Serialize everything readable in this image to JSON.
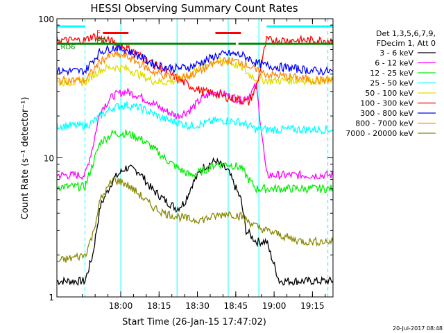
{
  "chart_data": {
    "type": "line",
    "title": "HESSI Observing Summary Count Rates",
    "xlabel": "Start Time (26-Jan-15 17:47:02)",
    "ylabel": "Count Rate (s⁻¹ detector⁻¹)",
    "yscale": "log",
    "ylim": [
      1,
      100
    ],
    "xlim_minutes": [
      -12.0,
      96.0
    ],
    "x_ticks": [
      "18:00",
      "18:15",
      "18:30",
      "18:45",
      "19:00",
      "19:15"
    ],
    "y_ticks": [
      "1",
      "10",
      "100"
    ],
    "footer_date": "20-Jul-2017 08:48",
    "legend": {
      "title": [
        "Det 1,3,5,6,7,9,",
        "FDecim 1, Att 0"
      ],
      "position": "right"
    },
    "series": [
      {
        "name": "3 - 6 keV",
        "color": "#000000",
        "x": [
          -12,
          -1,
          2,
          5,
          10,
          15,
          20,
          25,
          30,
          35,
          38,
          41,
          45,
          50,
          55,
          60,
          62,
          66,
          70,
          75,
          80,
          85,
          88,
          92,
          96
        ],
        "y": [
          1.3,
          1.3,
          2,
          4.5,
          7,
          8.5,
          8,
          6,
          5,
          4.3,
          4.8,
          6.5,
          8.5,
          9.5,
          8,
          5,
          3,
          2.5,
          2.5,
          1.3,
          1.3,
          1.3,
          1.3,
          1.3,
          1.3
        ]
      },
      {
        "name": "6 - 12 keV",
        "color": "#ff00ff",
        "x": [
          -12,
          -1,
          2,
          5,
          10,
          15,
          20,
          25,
          30,
          35,
          40,
          45,
          50,
          55,
          60,
          63,
          66,
          70,
          75,
          80,
          85,
          90,
          96
        ],
        "y": [
          7.5,
          7.5,
          12,
          22,
          28,
          30,
          28,
          25,
          22,
          20,
          22,
          27,
          30,
          28,
          26,
          28,
          33,
          7.5,
          7.5,
          7.5,
          7.5,
          7.5,
          7.5
        ]
      },
      {
        "name": "12 - 25 keV",
        "color": "#00ee00",
        "x": [
          -12,
          -1,
          2,
          5,
          10,
          15,
          20,
          25,
          30,
          35,
          40,
          45,
          50,
          55,
          60,
          63,
          66,
          70,
          75,
          80,
          85,
          90,
          96
        ],
        "y": [
          6.2,
          6.2,
          9,
          13,
          15,
          15,
          14,
          12,
          10,
          8.5,
          7.5,
          8,
          9,
          9,
          8.5,
          7,
          6,
          6,
          6,
          6,
          6,
          6,
          6
        ]
      },
      {
        "name": "25 - 50 keV",
        "color": "#00ffff",
        "x": [
          -12,
          -1,
          2,
          5,
          10,
          15,
          20,
          25,
          30,
          35,
          40,
          45,
          50,
          55,
          60,
          63,
          66,
          70,
          75,
          80,
          85,
          90,
          96
        ],
        "y": [
          17,
          17,
          18,
          20,
          23,
          24,
          23,
          21,
          19,
          18,
          17,
          17.5,
          18.5,
          18.5,
          18,
          17,
          16,
          16,
          16,
          16,
          16,
          16,
          16
        ]
      },
      {
        "name": "50 - 100 keV",
        "color": "#dddd00",
        "x": [
          -12,
          -1,
          2,
          5,
          10,
          15,
          20,
          25,
          30,
          35,
          40,
          45,
          50,
          55,
          60,
          63,
          66,
          70,
          75,
          80,
          85,
          90,
          96
        ],
        "y": [
          35,
          35,
          39,
          43,
          45,
          44,
          40,
          36,
          35,
          36,
          40,
          46,
          50,
          49,
          45,
          40,
          37,
          36,
          36,
          36,
          36,
          36,
          36
        ]
      },
      {
        "name": "100 - 300 keV",
        "color": "#ff0000",
        "x": [
          -12,
          -1,
          2,
          5,
          10,
          15,
          20,
          25,
          30,
          35,
          40,
          45,
          50,
          55,
          60,
          63,
          66,
          70,
          75,
          80,
          85,
          90,
          96
        ],
        "y": [
          70,
          70,
          75,
          72,
          68,
          62,
          55,
          48,
          43,
          37,
          33,
          30,
          29,
          27,
          26,
          25,
          32,
          70,
          70,
          70,
          70,
          70,
          70
        ]
      },
      {
        "name": "300 - 800 keV",
        "color": "#0000ff",
        "x": [
          -12,
          -1,
          2,
          5,
          10,
          15,
          20,
          25,
          30,
          35,
          40,
          45,
          50,
          55,
          60,
          63,
          66,
          70,
          75,
          80,
          85,
          90,
          96
        ],
        "y": [
          42,
          42,
          50,
          58,
          62,
          60,
          54,
          48,
          45,
          44,
          45,
          49,
          54,
          56,
          55,
          52,
          48,
          46,
          45,
          44,
          43,
          42,
          42
        ]
      },
      {
        "name": "800 - 7000 keV",
        "color": "#ff8800",
        "x": [
          -12,
          -1,
          2,
          5,
          10,
          15,
          20,
          25,
          30,
          35,
          40,
          45,
          50,
          55,
          60,
          63,
          66,
          70,
          75,
          80,
          85,
          90,
          96
        ],
        "y": [
          36,
          36,
          42,
          50,
          55,
          54,
          48,
          42,
          39,
          38,
          39,
          43,
          48,
          50,
          49,
          46,
          42,
          40,
          39,
          38,
          37,
          36,
          36
        ]
      },
      {
        "name": "7000 - 20000 keV",
        "color": "#888800",
        "x": [
          -12,
          -1,
          2,
          5,
          10,
          15,
          20,
          25,
          30,
          35,
          40,
          45,
          50,
          55,
          60,
          63,
          66,
          70,
          75,
          80,
          85,
          90,
          96
        ],
        "y": [
          1.8,
          2,
          2.8,
          5,
          7,
          6.5,
          5.5,
          4.5,
          4,
          3.8,
          3.6,
          3.6,
          3.8,
          4,
          3.8,
          3.5,
          3.2,
          3,
          2.8,
          2.6,
          2.5,
          2.5,
          2.5
        ]
      }
    ],
    "annotations": [
      {
        "text": "F",
        "color": "#ff0000",
        "x": 3.5,
        "y": 80
      },
      {
        "text": "PD",
        "color": "#008800",
        "x": 3.5,
        "y": 70
      },
      {
        "text": "RD6",
        "color": "#008800",
        "x": -10.5,
        "y": 63
      }
    ],
    "flag_bars": [
      {
        "name": "flare",
        "color": "#ff0000",
        "x0": 6,
        "x1": 16,
        "y": 79
      },
      {
        "name": "flare",
        "color": "#ff0000",
        "x0": 50,
        "x1": 60,
        "y": 79
      },
      {
        "name": "decimation",
        "color": "#008800",
        "x0": -12,
        "x1": 58,
        "y": 66
      },
      {
        "name": "decimation",
        "color": "#008800",
        "x0": 59,
        "x1": 96,
        "y": 66
      },
      {
        "name": "saa",
        "color": "#00ffff",
        "x0": -12,
        "x1": -1,
        "y": 88
      },
      {
        "name": "saa",
        "color": "#00ffff",
        "x0": 70,
        "x1": 96,
        "y": 88
      }
    ],
    "vlines": [
      {
        "x": -1,
        "color": "#00ffff",
        "style": "dashed"
      },
      {
        "x": 94,
        "color": "#00ffff",
        "style": "dashed"
      },
      {
        "x": 13,
        "color": "#00ffff",
        "style": "solid"
      },
      {
        "x": 35,
        "color": "#00ffff",
        "style": "solid"
      },
      {
        "x": 55,
        "color": "#00ffff",
        "style": "solid"
      },
      {
        "x": 67,
        "color": "#00ffff",
        "style": "solid"
      }
    ]
  }
}
